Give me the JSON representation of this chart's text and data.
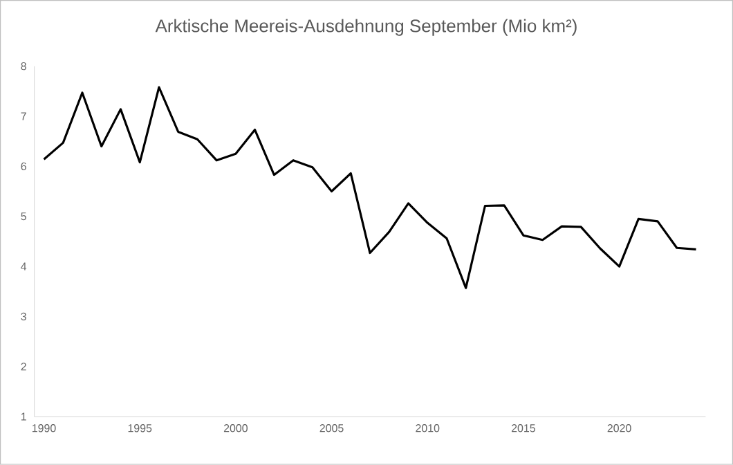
{
  "chart_data": {
    "type": "line",
    "title": "Arktische Meereis-Ausdehnung September (Mio km²)",
    "x": [
      1990,
      1991,
      1992,
      1993,
      1994,
      1995,
      1996,
      1997,
      1998,
      1999,
      2000,
      2001,
      2002,
      2003,
      2004,
      2005,
      2006,
      2007,
      2008,
      2009,
      2010,
      2011,
      2012,
      2013,
      2014,
      2015,
      2016,
      2017,
      2018,
      2019,
      2020,
      2021,
      2022,
      2023,
      2024
    ],
    "series": [
      {
        "color": "#000000",
        "values": [
          6.14,
          6.47,
          7.47,
          6.4,
          7.14,
          6.08,
          7.58,
          6.69,
          6.54,
          6.12,
          6.25,
          6.73,
          5.83,
          6.12,
          5.98,
          5.5,
          5.86,
          4.27,
          4.69,
          5.26,
          4.87,
          4.56,
          3.57,
          5.21,
          5.22,
          4.62,
          4.53,
          4.8,
          4.79,
          4.36,
          4.0,
          4.95,
          4.9,
          4.37,
          4.34
        ]
      }
    ],
    "xlim": [
      1989.5,
      2024.5
    ],
    "xticks": [
      1990,
      1995,
      2000,
      2005,
      2010,
      2015,
      2020
    ],
    "ylim": [
      1,
      8
    ],
    "yticks": [
      1,
      2,
      3,
      4,
      5,
      6,
      7,
      8
    ],
    "line_style": "solid",
    "marker": "none"
  }
}
